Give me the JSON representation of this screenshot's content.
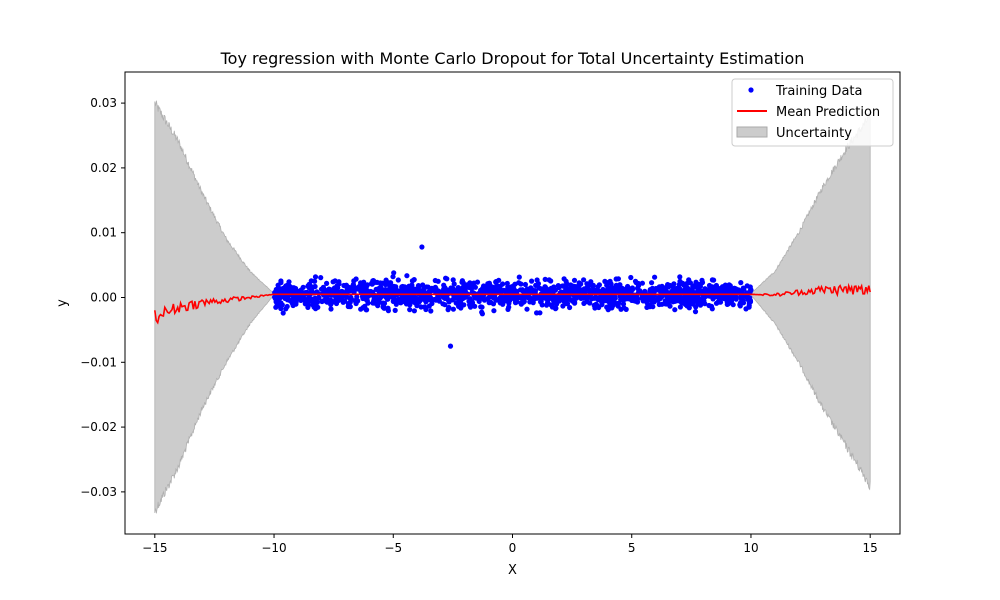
{
  "chart_data": {
    "type": "scatter",
    "title": "Toy regression with Monte Carlo Dropout for Total Uncertainty Estimation",
    "xlabel": "X",
    "ylabel": "y",
    "xlim": [
      -16.25,
      16.25
    ],
    "ylim": [
      -0.0365,
      0.0348
    ],
    "x_ticks": [
      {
        "value": -15,
        "label": "−15"
      },
      {
        "value": -10,
        "label": "−10"
      },
      {
        "value": -5,
        "label": "−5"
      },
      {
        "value": 0,
        "label": "0"
      },
      {
        "value": 5,
        "label": "5"
      },
      {
        "value": 10,
        "label": "10"
      },
      {
        "value": 15,
        "label": "15"
      }
    ],
    "y_ticks": [
      {
        "value": -0.03,
        "label": "−0.03"
      },
      {
        "value": -0.02,
        "label": "−0.02"
      },
      {
        "value": -0.01,
        "label": "−0.01"
      },
      {
        "value": 0.0,
        "label": "0.00"
      },
      {
        "value": 0.01,
        "label": "0.01"
      },
      {
        "value": 0.02,
        "label": "0.02"
      },
      {
        "value": 0.03,
        "label": "0.03"
      }
    ],
    "grid": false,
    "legend_position": "top-right",
    "series": [
      {
        "name": "Training Data",
        "kind": "scatter",
        "color": "#0000ff",
        "x_range": [
          -10,
          10
        ],
        "y_center": 0.0005,
        "y_spread": 0.0045,
        "y_extremes": [
          -0.0075,
          0.0078
        ]
      },
      {
        "name": "Mean Prediction",
        "kind": "line",
        "color": "#ff0000",
        "x": [
          -15,
          -14,
          -13,
          -12,
          -11,
          -10,
          0,
          10,
          11,
          12,
          13,
          14,
          15
        ],
        "y": [
          -0.003,
          -0.0015,
          -0.0008,
          -0.0004,
          0.0,
          0.0005,
          0.0005,
          0.0005,
          0.0004,
          0.0008,
          0.0012,
          0.0012,
          0.001
        ]
      },
      {
        "name": "Uncertainty",
        "kind": "band",
        "color": "#cccccc",
        "x": [
          -15,
          -14,
          -13,
          -12,
          -11,
          -10,
          10,
          11,
          12,
          13,
          14,
          15
        ],
        "upper": [
          0.03,
          0.024,
          0.016,
          0.009,
          0.004,
          0.0006,
          0.0006,
          0.004,
          0.01,
          0.017,
          0.023,
          0.028
        ],
        "lower": [
          -0.033,
          -0.026,
          -0.017,
          -0.01,
          -0.004,
          0.0004,
          0.0004,
          -0.004,
          -0.01,
          -0.017,
          -0.023,
          -0.029
        ]
      }
    ]
  }
}
